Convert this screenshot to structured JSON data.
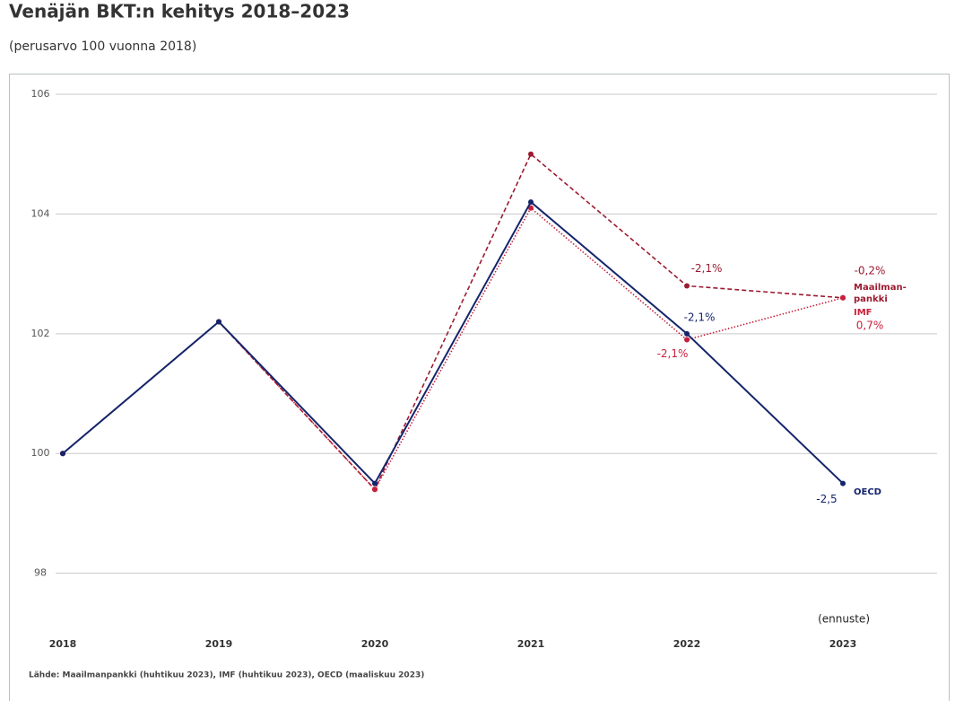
{
  "chart_data": {
    "type": "line",
    "title": "Venäjän BKT:n kehitys 2018–2023",
    "subtitle": "(perusarvo 100 vuonna 2018)",
    "annotation": "(ennuste)",
    "source": "Lähde: Maailmanpankki (huhtikuu 2023), IMF (huhtikuu 2023), OECD (maaliskuu 2023)",
    "categories": [
      "2018",
      "2019",
      "2020",
      "2021",
      "2022",
      "2023"
    ],
    "ylim": [
      97.2,
      106.3
    ],
    "yticks": [
      98,
      100,
      102,
      104,
      106
    ],
    "grid": true,
    "series": [
      {
        "name": "Maailman-pankki",
        "color": "#9b1b30",
        "dash": "dashed",
        "values": [
          100,
          102.2,
          99.4,
          105.0,
          102.8,
          102.6
        ],
        "growth_labels": [
          "-2,1%",
          "-0,2%"
        ]
      },
      {
        "name": "IMF",
        "color": "#c8203c",
        "dash": "dotted",
        "values": [
          100,
          102.2,
          99.4,
          104.1,
          101.9,
          102.6
        ],
        "growth_labels": [
          "-2,1%",
          "0,7%"
        ]
      },
      {
        "name": "OECD",
        "color": "#14256b",
        "dash": "solid",
        "values": [
          100,
          102.2,
          99.5,
          104.2,
          102.0,
          99.5
        ],
        "growth_labels": [
          "-2,1%",
          "-2,5"
        ]
      }
    ]
  }
}
